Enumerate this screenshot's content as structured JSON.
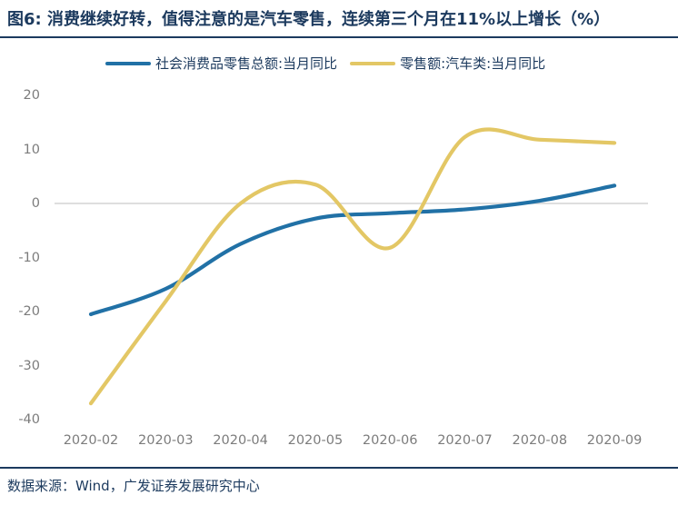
{
  "header": {
    "title": "图6: 消费继续好转，值得注意的是汽车零售，连续第三个月在11%以上增长（%）"
  },
  "legend": [
    {
      "label": "社会消费品零售总额:当月同比",
      "color": "#2171a6"
    },
    {
      "label": "零售额:汽车类:当月同比",
      "color": "#e3c765"
    }
  ],
  "footer": {
    "source": "数据来源：Wind，广发证券发展研究中心"
  },
  "chart_data": {
    "type": "line",
    "title": "图6: 消费继续好转，值得注意的是汽车零售，连续第三个月在11%以上增长（%）",
    "categories": [
      "2020-02",
      "2020-03",
      "2020-04",
      "2020-05",
      "2020-06",
      "2020-07",
      "2020-08",
      "2020-09"
    ],
    "series": [
      {
        "name": "社会消费品零售总额:当月同比",
        "color": "#2171a6",
        "values": [
          -20.5,
          -15.8,
          -7.5,
          -2.8,
          -1.8,
          -1.1,
          0.5,
          3.3
        ]
      },
      {
        "name": "零售额:汽车类:当月同比",
        "color": "#e3c765",
        "values": [
          -37.0,
          -18.1,
          0.0,
          3.5,
          -8.2,
          12.3,
          11.8,
          11.2
        ]
      }
    ],
    "xlabel": "",
    "ylabel": "",
    "ylim": [
      -40,
      20
    ],
    "yticks": [
      20,
      10,
      0,
      -10,
      -20,
      -30,
      -40
    ],
    "grid": "zero-line-only",
    "gridline_value": 0,
    "gridline_color": "#d9d9d9",
    "smooth": true,
    "legend_position": "top"
  }
}
